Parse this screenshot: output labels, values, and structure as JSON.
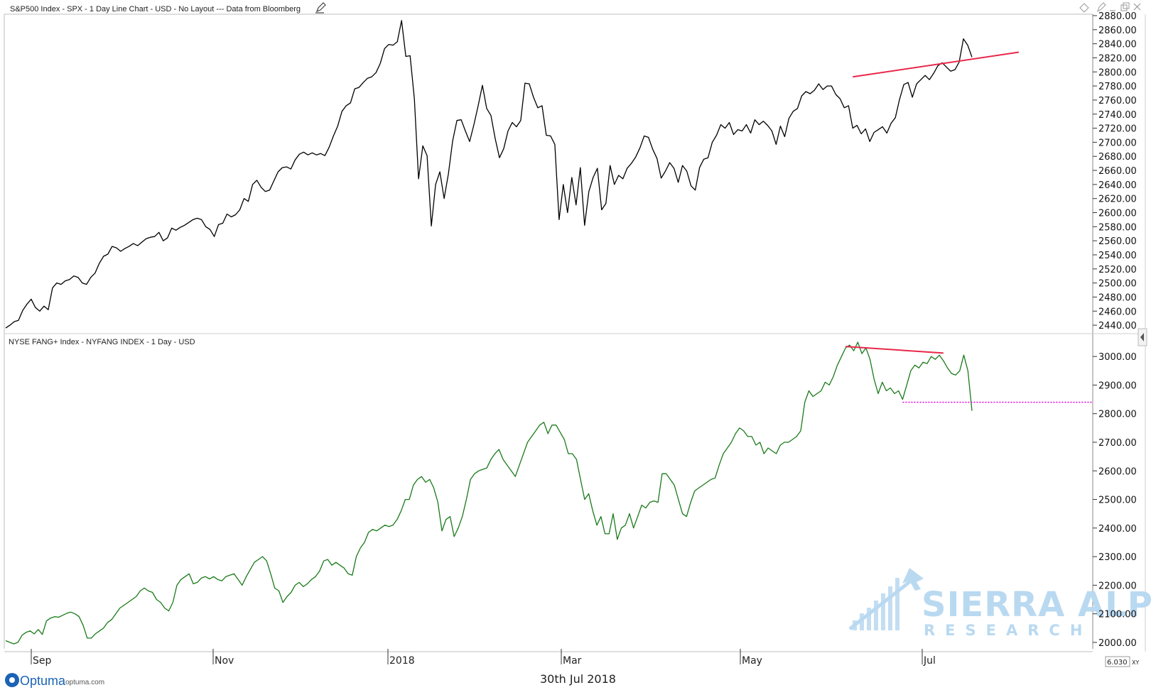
{
  "chart_data": [
    {
      "type": "line",
      "title": "S&P500 Index - SPX - 1 Day Line Chart - USD - No Layout --- Data from Bloomberg",
      "ylim": [
        2430,
        2880
      ],
      "yticks": [
        "2880.00",
        "2860.00",
        "2840.00",
        "2820.00",
        "2800.00",
        "2780.00",
        "2760.00",
        "2740.00",
        "2720.00",
        "2700.00",
        "2680.00",
        "2660.00",
        "2640.00",
        "2620.00",
        "2600.00",
        "2580.00",
        "2560.00",
        "2540.00",
        "2520.00",
        "2500.00",
        "2480.00",
        "2460.00",
        "2440.00"
      ],
      "series": [
        {
          "color": "#000000",
          "values": [
            2436,
            2440,
            2445,
            2447,
            2461,
            2470,
            2477,
            2465,
            2460,
            2467,
            2462,
            2493,
            2500,
            2498,
            2503,
            2505,
            2510,
            2508,
            2500,
            2498,
            2508,
            2514,
            2528,
            2538,
            2541,
            2552,
            2550,
            2545,
            2549,
            2552,
            2556,
            2553,
            2558,
            2563,
            2565,
            2566,
            2572,
            2560,
            2564,
            2578,
            2575,
            2579,
            2582,
            2586,
            2590,
            2592,
            2590,
            2580,
            2576,
            2566,
            2583,
            2585,
            2598,
            2594,
            2597,
            2604,
            2620,
            2616,
            2640,
            2646,
            2636,
            2630,
            2632,
            2645,
            2658,
            2664,
            2665,
            2662,
            2675,
            2683,
            2686,
            2682,
            2685,
            2682,
            2684,
            2681,
            2693,
            2709,
            2723,
            2744,
            2752,
            2756,
            2776,
            2778,
            2785,
            2791,
            2793,
            2799,
            2812,
            2833,
            2839,
            2838,
            2843,
            2873,
            2822,
            2823,
            2762,
            2648,
            2695,
            2681,
            2581,
            2640,
            2658,
            2620,
            2655,
            2702,
            2731,
            2732,
            2716,
            2701,
            2725,
            2752,
            2781,
            2748,
            2738,
            2705,
            2678,
            2691,
            2716,
            2728,
            2722,
            2731,
            2784,
            2783,
            2764,
            2749,
            2752,
            2710,
            2709,
            2697,
            2590,
            2640,
            2600,
            2650,
            2611,
            2664,
            2582,
            2630,
            2650,
            2663,
            2604,
            2613,
            2667,
            2640,
            2653,
            2648,
            2663,
            2670,
            2679,
            2692,
            2709,
            2707,
            2690,
            2677,
            2649,
            2659,
            2671,
            2663,
            2643,
            2667,
            2659,
            2638,
            2632,
            2664,
            2676,
            2678,
            2700,
            2710,
            2725,
            2720,
            2728,
            2711,
            2718,
            2716,
            2725,
            2713,
            2732,
            2725,
            2730,
            2724,
            2716,
            2697,
            2723,
            2708,
            2734,
            2744,
            2748,
            2766,
            2772,
            2769,
            2774,
            2783,
            2775,
            2780,
            2780,
            2768,
            2762,
            2749,
            2752,
            2720,
            2724,
            2712,
            2719,
            2701,
            2714,
            2718,
            2722,
            2713,
            2727,
            2735,
            2761,
            2782,
            2785,
            2764,
            2783,
            2789,
            2795,
            2789,
            2798,
            2809,
            2813,
            2807,
            2801,
            2803,
            2814,
            2847,
            2838,
            2821
          ]
        }
      ],
      "annotations": [
        {
          "type": "trendline",
          "color": "#e8284a",
          "from_value": 2793,
          "to_value": 2828
        }
      ]
    },
    {
      "type": "line",
      "title": "NYSE FANG+ Index - NYFANG INDEX - 1 Day - USD",
      "ylim": [
        1980,
        3060
      ],
      "yticks": [
        "3000.00",
        "2900.00",
        "2800.00",
        "2700.00",
        "2600.00",
        "2500.00",
        "2400.00",
        "2300.00",
        "2200.00",
        "2100.00",
        "2000.00"
      ],
      "series": [
        {
          "color": "#1a7a1a",
          "values": [
            2006,
            2000,
            1995,
            2000,
            2025,
            2035,
            2040,
            2030,
            2045,
            2028,
            2075,
            2085,
            2090,
            2088,
            2095,
            2102,
            2106,
            2100,
            2090,
            2060,
            2015,
            2015,
            2030,
            2040,
            2050,
            2070,
            2080,
            2100,
            2120,
            2130,
            2140,
            2150,
            2160,
            2180,
            2190,
            2180,
            2175,
            2150,
            2140,
            2120,
            2110,
            2140,
            2200,
            2220,
            2230,
            2240,
            2205,
            2210,
            2225,
            2230,
            2222,
            2230,
            2220,
            2215,
            2230,
            2235,
            2240,
            2220,
            2200,
            2230,
            2255,
            2280,
            2290,
            2300,
            2285,
            2240,
            2190,
            2180,
            2140,
            2160,
            2175,
            2200,
            2210,
            2195,
            2205,
            2220,
            2230,
            2250,
            2285,
            2290,
            2270,
            2280,
            2270,
            2260,
            2240,
            2235,
            2300,
            2330,
            2350,
            2385,
            2395,
            2390,
            2400,
            2410,
            2405,
            2410,
            2430,
            2460,
            2500,
            2500,
            2550,
            2570,
            2580,
            2560,
            2570,
            2540,
            2490,
            2390,
            2430,
            2440,
            2370,
            2400,
            2440,
            2500,
            2570,
            2590,
            2600,
            2605,
            2610,
            2640,
            2660,
            2675,
            2640,
            2620,
            2600,
            2580,
            2620,
            2660,
            2700,
            2720,
            2740,
            2760,
            2770,
            2730,
            2760,
            2760,
            2735,
            2710,
            2660,
            2660,
            2640,
            2570,
            2500,
            2520,
            2460,
            2410,
            2440,
            2380,
            2380,
            2450,
            2360,
            2400,
            2410,
            2450,
            2400,
            2440,
            2480,
            2470,
            2490,
            2495,
            2490,
            2590,
            2590,
            2570,
            2550,
            2500,
            2450,
            2440,
            2490,
            2530,
            2540,
            2550,
            2560,
            2570,
            2575,
            2620,
            2660,
            2680,
            2700,
            2730,
            2750,
            2740,
            2720,
            2720,
            2690,
            2700,
            2660,
            2680,
            2670,
            2660,
            2690,
            2700,
            2700,
            2710,
            2720,
            2740,
            2840,
            2880,
            2860,
            2870,
            2880,
            2910,
            2900,
            2930,
            2970,
            3000,
            3030,
            3040,
            3020,
            3050,
            3010,
            3030,
            2990,
            2920,
            2870,
            2910,
            2880,
            2890,
            2870,
            2880,
            2850,
            2900,
            2950,
            2970,
            2960,
            2980,
            2975,
            3000,
            2990,
            3005,
            2985,
            2960,
            2940,
            2935,
            2950,
            3005,
            2950,
            2810
          ]
        }
      ],
      "annotations": [
        {
          "type": "trendline",
          "color": "#e8284a",
          "from_value": 3035,
          "to_value": 3012
        },
        {
          "type": "horizontal",
          "style": "dotted",
          "color": "#e000e0",
          "value": 2840
        }
      ]
    }
  ],
  "x_axis": {
    "labels": [
      "Sep",
      "Nov",
      "2018",
      "Mar",
      "May",
      "Jul"
    ]
  },
  "footer": {
    "brand": "Optuma",
    "site": "optuma.com",
    "date": "30th Jul 2018",
    "zoom": "6.030",
    "xy": "XY"
  },
  "watermark": {
    "line1": "SIERRA ALPHA",
    "line2": "RESEARCH"
  },
  "toolbar_icons": [
    "diamond-icon",
    "edit-icon",
    "minimize-icon",
    "restore-icon",
    "close-icon"
  ]
}
